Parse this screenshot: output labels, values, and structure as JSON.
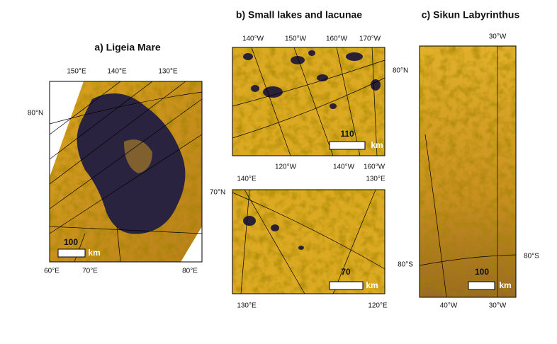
{
  "panels": [
    {
      "title": "a) Ligeia Mare",
      "labels": [
        "150°E",
        "140°E",
        "130°E",
        "80°N",
        "60°E",
        "70°E",
        "80°E"
      ],
      "scale": {
        "value": 100,
        "unit": "km"
      }
    },
    {
      "title": "b) Small lakes and lacunae",
      "labels": [
        "140°W",
        "150°W",
        "160°W",
        "170°W",
        "80°N",
        "120°W",
        "140°W",
        "160°W"
      ],
      "scale": {
        "value": 110,
        "unit": "km"
      }
    },
    {
      "labels": [
        "140°E",
        "130°E",
        "70°N",
        "130°E",
        "120°E"
      ],
      "scale": {
        "value": 70,
        "unit": "km"
      }
    },
    {
      "title": "c) Sikun Labyrinthus",
      "labels": [
        "30°W",
        "80°S",
        "80°S",
        "40°W",
        "30°W"
      ],
      "scale": {
        "value": 100,
        "unit": "km"
      }
    }
  ]
}
